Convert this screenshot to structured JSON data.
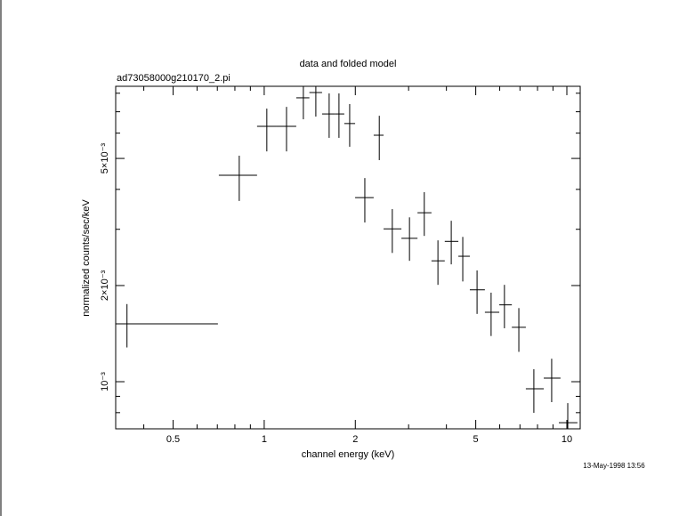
{
  "chart_data": {
    "type": "errorbar",
    "title": "data and folded model",
    "subtitle": "ad73058000g210170_2.pi",
    "x_label": "channel energy (keV)",
    "y_label": "normalized counts/sec/keV",
    "annotation": "13-May-1998 13:56",
    "xscale": "log",
    "yscale": "log",
    "grid": false,
    "xlim": [
      0.323,
      11.07
    ],
    "ylim": [
      0.000712,
      0.00841
    ],
    "xticks": [
      0.5,
      1,
      2,
      5,
      10
    ],
    "xminorticks": [
      0.4,
      0.6,
      0.7,
      0.8,
      0.9,
      3,
      4,
      6,
      7,
      8,
      9
    ],
    "yticks": [
      {
        "value": 0.001,
        "label": "10⁻³"
      },
      {
        "value": 0.002,
        "label": "2×10⁻³"
      },
      {
        "value": 0.005,
        "label": "5×10⁻³"
      }
    ],
    "yminorticks": [
      0.0008,
      0.0009,
      0.003,
      0.004,
      0.006,
      0.007,
      0.008
    ],
    "series": [
      {
        "color": "#000000",
        "x": [
          0.352,
          0.827,
          1.02,
          1.185,
          1.347,
          1.481,
          1.639,
          1.766,
          1.916,
          2.15,
          2.4,
          2.65,
          3.02,
          3.38,
          3.75,
          4.15,
          4.53,
          5.05,
          5.62,
          6.22,
          6.94,
          7.78,
          8.91,
          10.07
        ],
        "xlo": [
          0.323,
          0.708,
          0.947,
          1.1,
          1.276,
          1.41,
          1.553,
          1.718,
          1.839,
          1.997,
          2.3,
          2.48,
          2.84,
          3.21,
          3.57,
          3.95,
          4.38,
          4.78,
          5.36,
          5.98,
          6.58,
          7.32,
          8.39,
          9.41
        ],
        "xhi": [
          0.703,
          0.947,
          1.1,
          1.276,
          1.41,
          1.553,
          1.718,
          1.839,
          1.997,
          2.3,
          2.48,
          2.84,
          3.21,
          3.57,
          3.95,
          4.38,
          4.78,
          5.36,
          5.98,
          6.58,
          7.32,
          8.39,
          9.53,
          10.84
        ],
        "y": [
          0.001518,
          0.00443,
          0.0063,
          0.0063,
          0.00774,
          0.00804,
          0.00689,
          0.00689,
          0.00643,
          0.00377,
          0.00591,
          0.00301,
          0.00281,
          0.00338,
          0.00239,
          0.00275,
          0.00247,
          0.00194,
          0.00165,
          0.00174,
          0.00148,
          0.00095,
          0.001026,
          0.000744
        ],
        "ylo": [
          0.00128,
          0.00368,
          0.00526,
          0.00526,
          0.00663,
          0.00676,
          0.0058,
          0.0058,
          0.00544,
          0.00315,
          0.00494,
          0.00253,
          0.00239,
          0.00286,
          0.00201,
          0.00233,
          0.00206,
          0.00163,
          0.00139,
          0.00147,
          0.00124,
          0.000799,
          0.000863,
          0.000712
        ],
        "yhi": [
          0.00175,
          0.0051,
          0.00716,
          0.00725,
          0.00841,
          0.00841,
          0.00799,
          0.00799,
          0.0074,
          0.00434,
          0.0068,
          0.00347,
          0.00327,
          0.00392,
          0.00277,
          0.00319,
          0.00284,
          0.00223,
          0.0019,
          0.00201,
          0.0017,
          0.001094,
          0.00118,
          0.000857
        ]
      }
    ]
  }
}
